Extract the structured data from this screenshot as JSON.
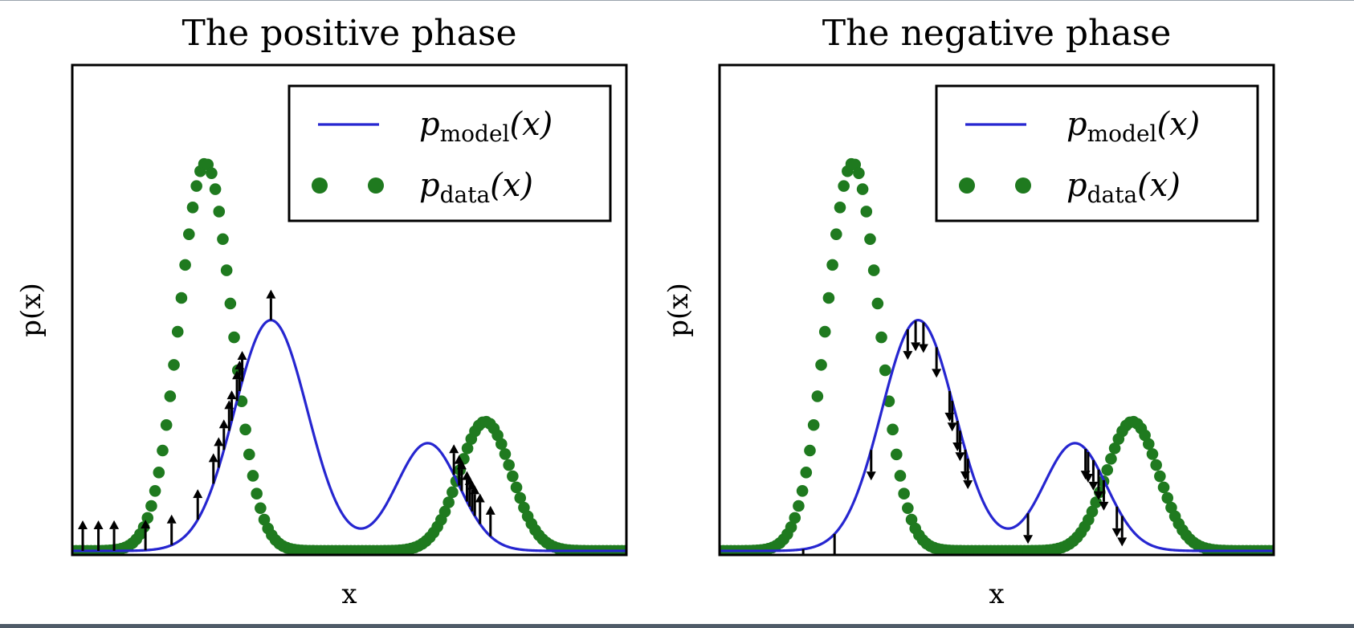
{
  "figure": {
    "colors": {
      "model_line": "#2626d0",
      "data_dots": "#1f7a1f",
      "arrows": "#000000",
      "frame": "#000000"
    }
  },
  "chart_data": [
    {
      "type": "line",
      "title": "The positive phase",
      "xlabel": "x",
      "ylabel": "p(x)",
      "xlim": [
        -3.8,
        6.8
      ],
      "ylim": [
        -0.005,
        0.6
      ],
      "grid": false,
      "ticks": false,
      "legend_position": "top-right",
      "legend": [
        {
          "series": "model",
          "base": "p",
          "sub": "model",
          "arg": "(x)",
          "style": "solid-line"
        },
        {
          "series": "data",
          "base": "p",
          "sub": "data",
          "arg": "(x)",
          "style": "dots"
        }
      ],
      "series": [
        {
          "id": "model",
          "style": "line",
          "mixture": [
            {
              "weight": 0.5,
              "mean": 0.0,
              "std": 0.7
            },
            {
              "weight": 0.2,
              "mean": 3.0,
              "std": 0.6
            }
          ]
        },
        {
          "id": "data",
          "style": "dots",
          "mixture": [
            {
              "weight": 0.6,
              "mean": -1.25,
              "std": 0.5
            },
            {
              "weight": 0.2,
              "mean": 4.1,
              "std": 0.5
            }
          ]
        }
      ],
      "annotations": {
        "type": "arrows",
        "direction": "up",
        "meaning": "samples drawn from p_data; arrow drawn on p_model curve",
        "x": [
          -3.6,
          -3.3,
          -3.0,
          -2.4,
          -1.9,
          -1.4,
          -1.1,
          -1.0,
          -0.9,
          -0.8,
          -0.75,
          -0.65,
          -0.6,
          -0.55,
          3.5,
          3.6,
          3.65,
          3.75,
          3.8,
          3.85,
          3.9,
          4.0,
          4.2,
          0.0
        ]
      }
    },
    {
      "type": "line",
      "title": "The negative phase",
      "xlabel": "x",
      "ylabel": "p(x)",
      "xlim": [
        -3.8,
        6.8
      ],
      "ylim": [
        -0.005,
        0.6
      ],
      "grid": false,
      "ticks": false,
      "legend_position": "top-right",
      "legend": [
        {
          "series": "model",
          "base": "p",
          "sub": "model",
          "arg": "(x)",
          "style": "solid-line"
        },
        {
          "series": "data",
          "base": "p",
          "sub": "data",
          "arg": "(x)",
          "style": "dots"
        }
      ],
      "series": [
        {
          "id": "model",
          "style": "line",
          "mixture": [
            {
              "weight": 0.5,
              "mean": 0.0,
              "std": 0.7
            },
            {
              "weight": 0.2,
              "mean": 3.0,
              "std": 0.6
            }
          ]
        },
        {
          "id": "data",
          "style": "dots",
          "mixture": [
            {
              "weight": 0.6,
              "mean": -1.25,
              "std": 0.5
            },
            {
              "weight": 0.2,
              "mean": 4.1,
              "std": 0.5
            }
          ]
        }
      ],
      "annotations": {
        "type": "arrows",
        "direction": "down",
        "meaning": "samples drawn from p_model; arrow drawn on p_model curve",
        "x": [
          -2.2,
          -1.6,
          -0.9,
          -0.2,
          -0.05,
          0.1,
          0.35,
          0.6,
          0.65,
          0.75,
          0.8,
          0.9,
          0.95,
          2.1,
          3.2,
          3.25,
          3.35,
          3.45,
          3.55,
          3.8,
          3.9
        ]
      }
    }
  ]
}
